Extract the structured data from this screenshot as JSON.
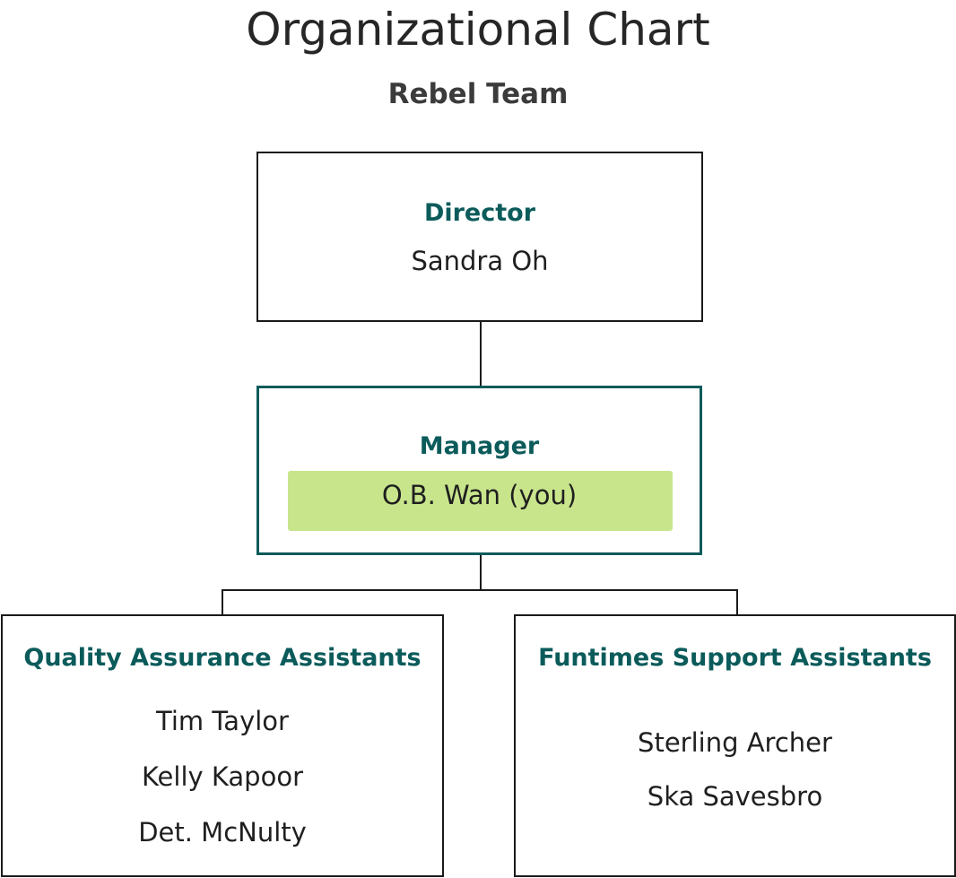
{
  "title": "Organizational Chart",
  "subtitle": "Rebel Team",
  "colors": {
    "role_text": "#0c5b5b",
    "highlight": "#c8e58c",
    "manager_border": "#0c5b5b",
    "border": "#1a1a1a"
  },
  "director": {
    "role": "Director",
    "name": "Sandra Oh"
  },
  "manager": {
    "role": "Manager",
    "name": "O.B. Wan (you)"
  },
  "teams": [
    {
      "role": "Quality Assurance Assistants",
      "members": [
        "Tim Taylor",
        "Kelly Kapoor",
        "Det. McNulty"
      ]
    },
    {
      "role": "Funtimes Support Assistants",
      "members": [
        "Sterling Archer",
        "Ska Savesbro"
      ]
    }
  ]
}
